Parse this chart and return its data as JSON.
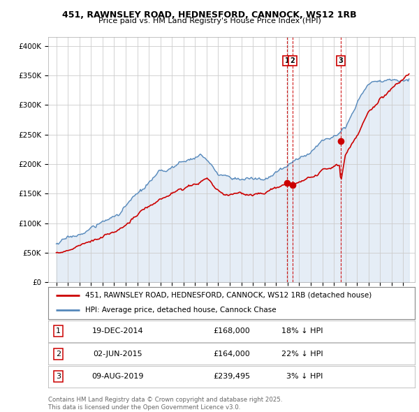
{
  "title_line1": "451, RAWNSLEY ROAD, HEDNESFORD, CANNOCK, WS12 1RB",
  "title_line2": "Price paid vs. HM Land Registry's House Price Index (HPI)",
  "background_color": "#ffffff",
  "chart_bg_color": "#eef4fb",
  "grid_color": "#cccccc",
  "sale_prices": [
    168000,
    164000,
    239495
  ],
  "sale_labels": [
    "1",
    "2",
    "3"
  ],
  "legend_line1": "451, RAWNSLEY ROAD, HEDNESFORD, CANNOCK, WS12 1RB (detached house)",
  "legend_line2": "HPI: Average price, detached house, Cannock Chase",
  "footer": "Contains HM Land Registry data © Crown copyright and database right 2025.\nThis data is licensed under the Open Government Licence v3.0.",
  "yticks": [
    0,
    50000,
    100000,
    150000,
    200000,
    250000,
    300000,
    350000,
    400000
  ],
  "ytick_labels": [
    "£0",
    "£50K",
    "£100K",
    "£150K",
    "£200K",
    "£250K",
    "£300K",
    "£350K",
    "£400K"
  ],
  "red_color": "#cc0000",
  "blue_color": "#5588bb",
  "blue_fill": "#ccddef",
  "vline_color": "#cc0000",
  "box_color": "#cc0000",
  "row_data": [
    [
      "1",
      "19-DEC-2014",
      "£168,000",
      "18% ↓ HPI"
    ],
    [
      "2",
      "02-JUN-2015",
      "£164,000",
      "22% ↓ HPI"
    ],
    [
      "3",
      "09-AUG-2019",
      "£239,495",
      "3% ↓ HPI"
    ]
  ]
}
